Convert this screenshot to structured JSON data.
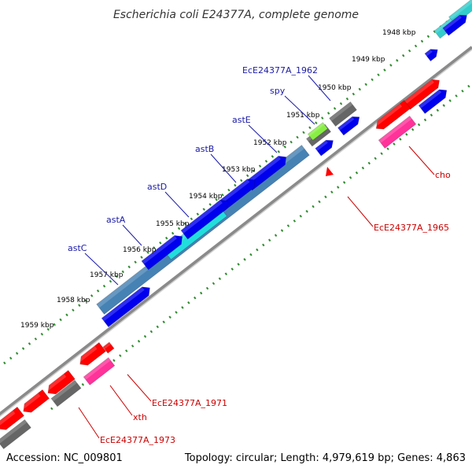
{
  "title": "Escherichia coli E24377A, complete genome",
  "footer": {
    "accession": "Accession: NC_009801",
    "summary": "Topology: circular; Length: 4,979,619 bp; Genes: 4,863"
  },
  "ruler": [
    "1948 kbp",
    "1949 kbp",
    "1950 kbp",
    "1951 kbp",
    "1952 kbp",
    "1953 kbp",
    "1954 kbp",
    "1955 kbp",
    "1956 kbp",
    "1957 kbp",
    "1958 kbp",
    "1959 kbp"
  ],
  "gene_labels_forward": [
    "EcE24377A_1962",
    "spy",
    "astE",
    "astB",
    "astD",
    "astA",
    "astC"
  ],
  "gene_labels_reverse": [
    "cho",
    "EcE24377A_1965",
    "EcE24377A_1971",
    "xth",
    "EcE24377A_1973"
  ],
  "colors": {
    "backbone": "#888888",
    "ticks": "#2e8b2e",
    "cds_blue": "#0000ee",
    "cds_red": "#ff0000",
    "cds_pink": "#ff3399",
    "cds_gray": "#666666",
    "cds_teal": "#33cccc",
    "operon_steel": "#4682b4",
    "operon_cyan": "#22dddd",
    "label_blue": "#1a1aa8",
    "label_red": "#cc0000"
  }
}
